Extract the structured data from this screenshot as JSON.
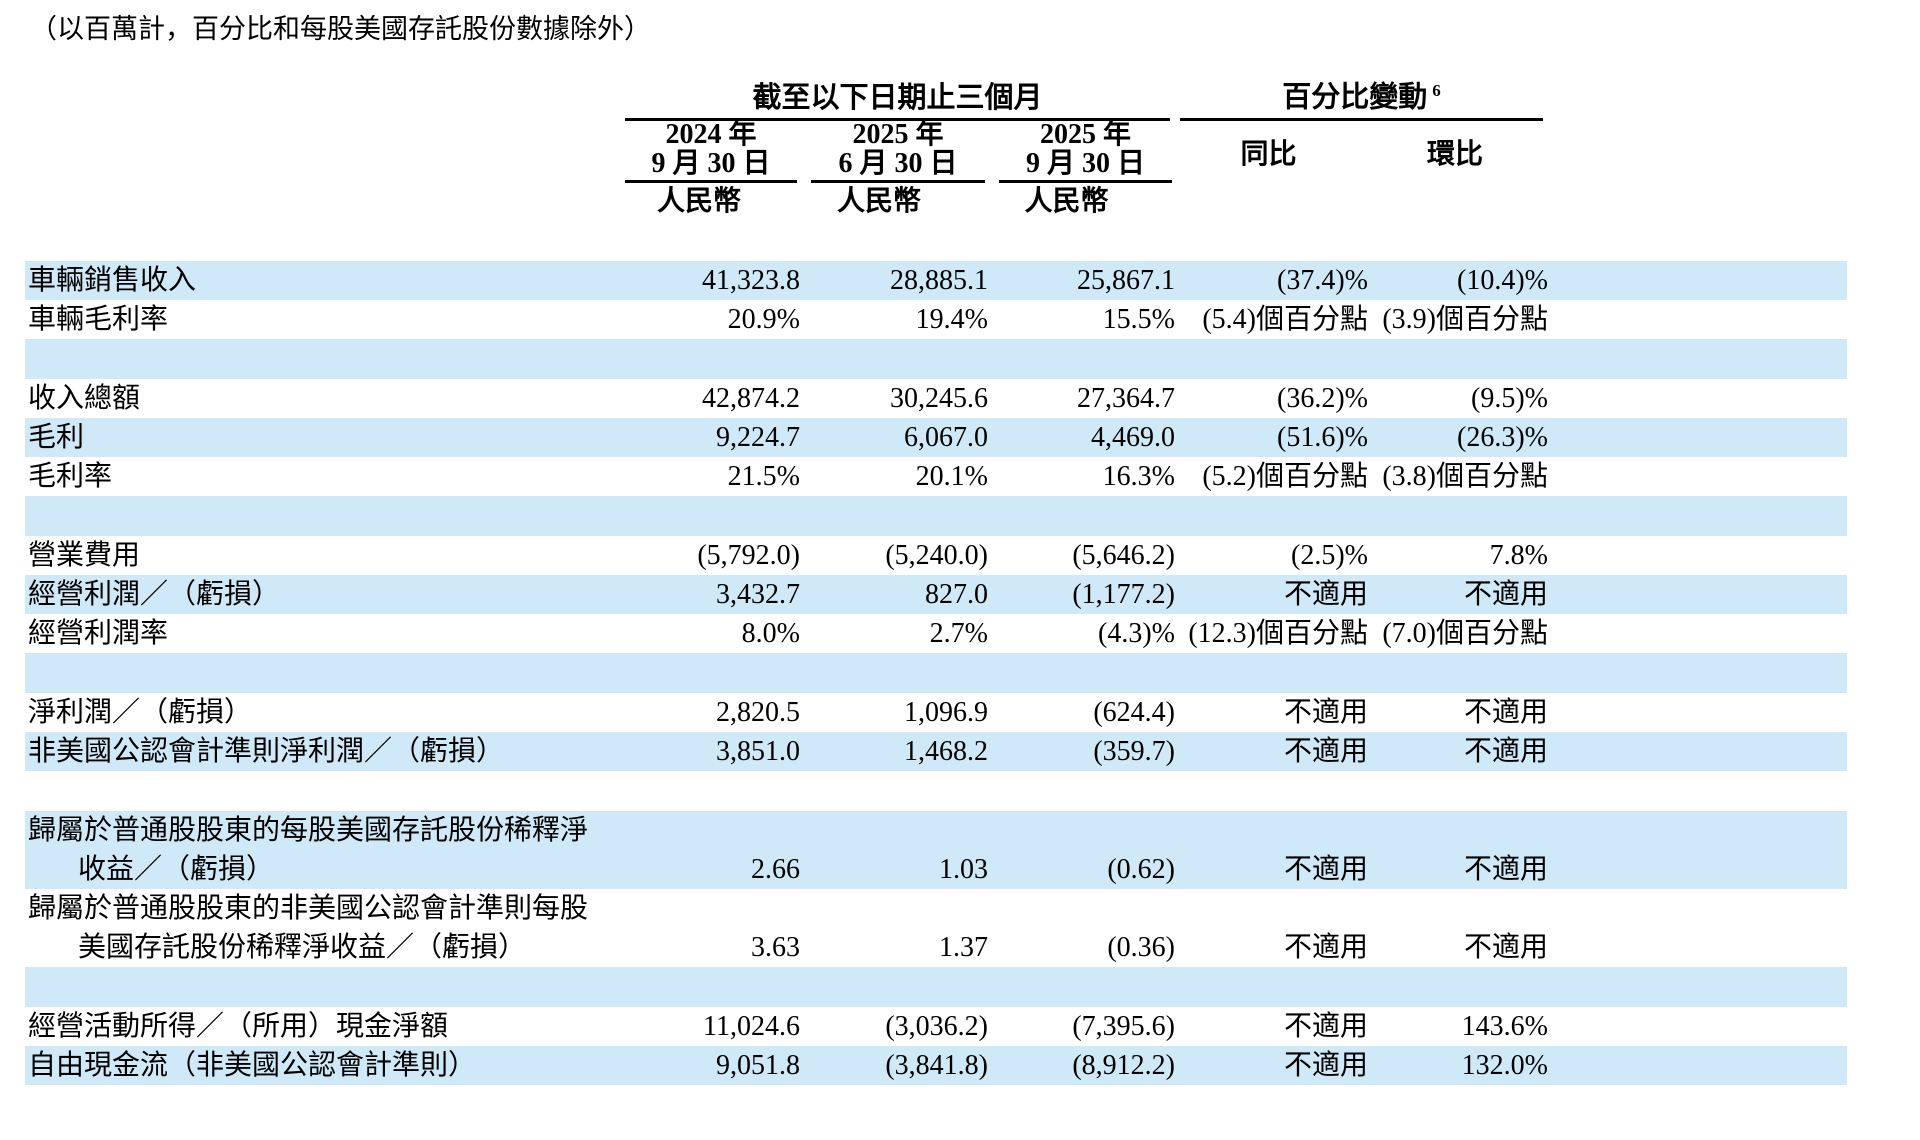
{
  "page": {
    "note": "（以百萬計，百分比和每股美國存託股份數據除外）"
  },
  "colors": {
    "row_highlight": "#cfe9f8"
  },
  "table": {
    "group_headers": {
      "period": "截至以下日期止三個月",
      "pct_change": "百分比變動",
      "pct_change_footnote": "6"
    },
    "columns": [
      {
        "line1": "2024 年",
        "line2": "9 月 30 日",
        "currency": "人民幣"
      },
      {
        "line1": "2025 年",
        "line2": "6 月 30 日",
        "currency": "人民幣"
      },
      {
        "line1": "2025 年",
        "line2": "9 月 30 日",
        "currency": "人民幣"
      }
    ],
    "change_columns": [
      {
        "label": "同比"
      },
      {
        "label": "環比"
      }
    ],
    "rows": [
      {
        "kind": "data",
        "shade": "blue",
        "label": "車輛銷售收入",
        "values": [
          "41,323.8",
          "28,885.1",
          "25,867.1",
          "(37.4)%",
          "(10.4)%"
        ]
      },
      {
        "kind": "data",
        "shade": "white",
        "label": "車輛毛利率",
        "values": [
          "20.9%",
          "19.4%",
          "15.5%",
          "(5.4)個百分點",
          "(3.9)個百分點"
        ]
      },
      {
        "kind": "spacer",
        "shade": "blue"
      },
      {
        "kind": "data",
        "shade": "white",
        "label": "收入總額",
        "values": [
          "42,874.2",
          "30,245.6",
          "27,364.7",
          "(36.2)%",
          "(9.5)%"
        ]
      },
      {
        "kind": "data",
        "shade": "blue",
        "label": "毛利",
        "values": [
          "9,224.7",
          "6,067.0",
          "4,469.0",
          "(51.6)%",
          "(26.3)%"
        ]
      },
      {
        "kind": "data",
        "shade": "white",
        "label": "毛利率",
        "values": [
          "21.5%",
          "20.1%",
          "16.3%",
          "(5.2)個百分點",
          "(3.8)個百分點"
        ]
      },
      {
        "kind": "spacer",
        "shade": "blue"
      },
      {
        "kind": "data",
        "shade": "white",
        "label": "營業費用",
        "values": [
          "(5,792.0)",
          "(5,240.0)",
          "(5,646.2)",
          "(2.5)%",
          "7.8%"
        ]
      },
      {
        "kind": "data",
        "shade": "blue",
        "label": "經營利潤／（虧損）",
        "values": [
          "3,432.7",
          "827.0",
          "(1,177.2)",
          "不適用",
          "不適用"
        ]
      },
      {
        "kind": "data",
        "shade": "white",
        "label": "經營利潤率",
        "values": [
          "8.0%",
          "2.7%",
          "(4.3)%",
          "(12.3)個百分點",
          "(7.0)個百分點"
        ]
      },
      {
        "kind": "spacer",
        "shade": "blue"
      },
      {
        "kind": "data",
        "shade": "white",
        "label": "淨利潤／（虧損）",
        "values": [
          "2,820.5",
          "1,096.9",
          "(624.4)",
          "不適用",
          "不適用"
        ]
      },
      {
        "kind": "data",
        "shade": "blue",
        "label": "非美國公認會計準則淨利潤／（虧損）",
        "values": [
          "3,851.0",
          "1,468.2",
          "(359.7)",
          "不適用",
          "不適用"
        ]
      },
      {
        "kind": "spacer",
        "shade": "white"
      },
      {
        "kind": "data2",
        "shade": "blue",
        "label": "歸屬於普通股股東的每股美國存託股份稀釋淨",
        "label2": "收益／（虧損）",
        "values": [
          "2.66",
          "1.03",
          "(0.62)",
          "不適用",
          "不適用"
        ]
      },
      {
        "kind": "data2",
        "shade": "white",
        "label": "歸屬於普通股股東的非美國公認會計準則每股",
        "label2": "美國存託股份稀釋淨收益／（虧損）",
        "values": [
          "3.63",
          "1.37",
          "(0.36)",
          "不適用",
          "不適用"
        ]
      },
      {
        "kind": "spacer",
        "shade": "blue"
      },
      {
        "kind": "data",
        "shade": "white",
        "label": "經營活動所得／（所用）現金淨額",
        "values": [
          "11,024.6",
          "(3,036.2)",
          "(7,395.6)",
          "不適用",
          "143.6%"
        ]
      },
      {
        "kind": "data",
        "shade": "blue",
        "label": "自由現金流（非美國公認會計準則）",
        "values": [
          "9,051.8",
          "(3,841.8)",
          "(8,912.2)",
          "不適用",
          "132.0%"
        ]
      }
    ]
  }
}
